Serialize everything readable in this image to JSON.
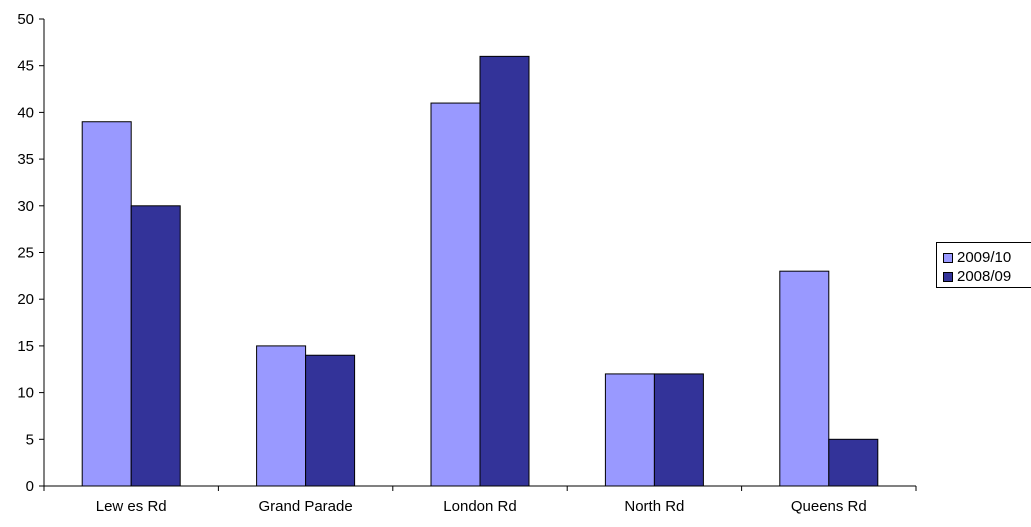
{
  "chart_data": {
    "type": "bar",
    "title": "",
    "xlabel": "",
    "ylabel": "",
    "categories": [
      "Lew es Rd",
      "Grand Parade",
      "London Rd",
      "North Rd",
      "Queens Rd"
    ],
    "series": [
      {
        "name": "2009/10",
        "values": [
          39,
          15,
          41,
          12,
          23
        ],
        "color": "#9999ff"
      },
      {
        "name": "2008/09",
        "values": [
          30,
          14,
          46,
          12,
          5
        ],
        "color": "#333399"
      }
    ],
    "ylim": [
      0,
      50
    ],
    "yticks": [
      "0",
      "5",
      "10",
      "15",
      "20",
      "25",
      "30",
      "35",
      "40",
      "45",
      "50"
    ],
    "grid": false,
    "legend_position": "right"
  }
}
